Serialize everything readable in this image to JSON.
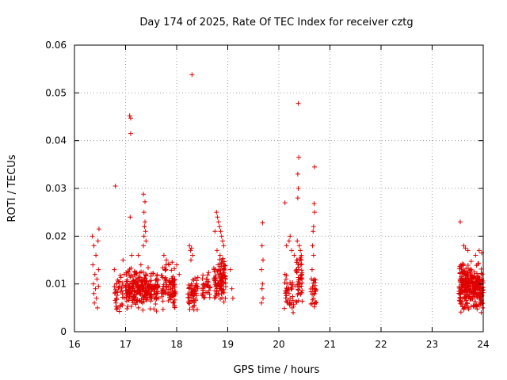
{
  "chart_data": {
    "type": "scatter",
    "title": "Day 174 of 2025, Rate Of TEC Index for receiver cztg",
    "xlabel": "GPS time / hours",
    "ylabel": "ROTI / TECUs",
    "xlim": [
      16,
      24
    ],
    "ylim": [
      0,
      0.06
    ],
    "x_ticks": [
      16,
      17,
      18,
      19,
      20,
      21,
      22,
      23,
      24
    ],
    "x_tick_labels": [
      "16",
      "17",
      "18",
      "19",
      "20",
      "21",
      "22",
      "23",
      "24"
    ],
    "y_ticks": [
      0,
      0.01,
      0.02,
      0.03,
      0.04,
      0.05,
      0.06
    ],
    "y_tick_labels": [
      "0",
      "0.01",
      "0.02",
      "0.03",
      "0.04",
      "0.05",
      "0.06"
    ],
    "grid": true,
    "marker": "+",
    "marker_color": "#e00000",
    "series": [
      {
        "name": "ROTI",
        "points": [
          [
            16.35,
            0.02
          ],
          [
            16.38,
            0.018
          ],
          [
            16.42,
            0.016
          ],
          [
            16.36,
            0.014
          ],
          [
            16.4,
            0.012
          ],
          [
            16.44,
            0.011
          ],
          [
            16.37,
            0.01
          ],
          [
            16.41,
            0.009
          ],
          [
            16.38,
            0.008
          ],
          [
            16.43,
            0.007
          ],
          [
            16.39,
            0.006
          ],
          [
            16.45,
            0.005
          ],
          [
            16.48,
            0.0215
          ],
          [
            16.46,
            0.019
          ],
          [
            16.47,
            0.013
          ],
          [
            16.47,
            0.0095
          ],
          [
            16.8,
            0.0305
          ],
          [
            16.78,
            0.013
          ],
          [
            16.82,
            0.01
          ],
          [
            16.79,
            0.008
          ],
          [
            16.81,
            0.006
          ],
          [
            16.84,
            0.005
          ],
          [
            16.95,
            0.015
          ],
          [
            16.97,
            0.012
          ],
          [
            16.93,
            0.0085
          ],
          [
            17.08,
            0.0452
          ],
          [
            17.1,
            0.0447
          ],
          [
            17.1,
            0.0415
          ],
          [
            17.09,
            0.024
          ],
          [
            17.12,
            0.016
          ],
          [
            17.35,
            0.0288
          ],
          [
            17.38,
            0.0272
          ],
          [
            17.36,
            0.025
          ],
          [
            17.38,
            0.023
          ],
          [
            17.37,
            0.022
          ],
          [
            17.39,
            0.021
          ],
          [
            17.36,
            0.02
          ],
          [
            17.4,
            0.019
          ],
          [
            17.35,
            0.018
          ],
          [
            17.25,
            0.016
          ],
          [
            17.3,
            0.014
          ],
          [
            17.75,
            0.016
          ],
          [
            17.8,
            0.015
          ],
          [
            17.85,
            0.014
          ],
          [
            17.78,
            0.013
          ],
          [
            18.0,
            0.014
          ],
          [
            18.05,
            0.012
          ],
          [
            18.25,
            0.018
          ],
          [
            18.27,
            0.017
          ],
          [
            18.29,
            0.0175
          ],
          [
            18.31,
            0.016
          ],
          [
            18.28,
            0.015
          ],
          [
            18.3,
            0.0538
          ],
          [
            18.75,
            0.021
          ],
          [
            18.78,
            0.025
          ],
          [
            18.8,
            0.024
          ],
          [
            18.82,
            0.023
          ],
          [
            18.84,
            0.022
          ],
          [
            18.86,
            0.021
          ],
          [
            18.88,
            0.02
          ],
          [
            18.9,
            0.019
          ],
          [
            18.92,
            0.018
          ],
          [
            18.79,
            0.017
          ],
          [
            18.85,
            0.016
          ],
          [
            18.89,
            0.015
          ],
          [
            18.81,
            0.014
          ],
          [
            18.93,
            0.013
          ],
          [
            19.05,
            0.013
          ],
          [
            19.08,
            0.009
          ],
          [
            19.1,
            0.007
          ],
          [
            19.68,
            0.0228
          ],
          [
            19.67,
            0.018
          ],
          [
            19.69,
            0.015
          ],
          [
            19.66,
            0.013
          ],
          [
            19.68,
            0.01
          ],
          [
            19.67,
            0.009
          ],
          [
            19.69,
            0.007
          ],
          [
            19.66,
            0.006
          ],
          [
            20.12,
            0.027
          ],
          [
            20.15,
            0.018
          ],
          [
            20.2,
            0.019
          ],
          [
            20.22,
            0.02
          ],
          [
            20.25,
            0.017
          ],
          [
            20.3,
            0.016
          ],
          [
            20.35,
            0.015
          ],
          [
            20.38,
            0.0478
          ],
          [
            20.39,
            0.0365
          ],
          [
            20.37,
            0.033
          ],
          [
            20.38,
            0.03
          ],
          [
            20.37,
            0.028
          ],
          [
            20.36,
            0.019
          ],
          [
            20.4,
            0.018
          ],
          [
            20.42,
            0.017
          ],
          [
            20.44,
            0.016
          ],
          [
            20.41,
            0.015
          ],
          [
            20.43,
            0.014
          ],
          [
            20.39,
            0.013
          ],
          [
            20.45,
            0.012
          ],
          [
            20.12,
            0.012
          ],
          [
            20.14,
            0.011
          ],
          [
            20.16,
            0.01
          ],
          [
            20.18,
            0.009
          ],
          [
            20.2,
            0.008
          ],
          [
            20.22,
            0.007
          ],
          [
            20.24,
            0.006
          ],
          [
            20.26,
            0.005
          ],
          [
            20.28,
            0.004
          ],
          [
            20.7,
            0.0345
          ],
          [
            20.69,
            0.0268
          ],
          [
            20.7,
            0.025
          ],
          [
            20.68,
            0.022
          ],
          [
            20.67,
            0.021
          ],
          [
            20.66,
            0.018
          ],
          [
            20.68,
            0.016
          ],
          [
            20.65,
            0.013
          ],
          [
            20.69,
            0.011
          ],
          [
            20.66,
            0.009
          ],
          [
            20.7,
            0.008
          ],
          [
            20.68,
            0.007
          ],
          [
            20.71,
            0.006
          ],
          [
            23.55,
            0.023
          ],
          [
            23.62,
            0.018
          ],
          [
            23.65,
            0.0175
          ],
          [
            23.7,
            0.017
          ],
          [
            23.85,
            0.016
          ],
          [
            23.92,
            0.017
          ],
          [
            23.97,
            0.0165
          ],
          [
            23.98,
            0.006
          ],
          [
            23.99,
            0.005
          ],
          [
            23.96,
            0.004
          ]
        ]
      }
    ],
    "clusters": [
      {
        "x_range": [
          16.78,
          16.98
        ],
        "y_range": [
          0.004,
          0.012
        ],
        "count": 35
      },
      {
        "x_range": [
          17.0,
          17.45
        ],
        "y_range": [
          0.004,
          0.014
        ],
        "count": 200
      },
      {
        "x_range": [
          17.45,
          17.65
        ],
        "y_range": [
          0.004,
          0.013
        ],
        "count": 70
      },
      {
        "x_range": [
          17.7,
          17.98
        ],
        "y_range": [
          0.004,
          0.015
        ],
        "count": 90
      },
      {
        "x_range": [
          18.22,
          18.42
        ],
        "y_range": [
          0.004,
          0.012
        ],
        "count": 70
      },
      {
        "x_range": [
          18.5,
          18.66
        ],
        "y_range": [
          0.006,
          0.013
        ],
        "count": 35
      },
      {
        "x_range": [
          18.72,
          18.96
        ],
        "y_range": [
          0.006,
          0.016
        ],
        "count": 110
      },
      {
        "x_range": [
          20.1,
          20.3
        ],
        "y_range": [
          0.004,
          0.012
        ],
        "count": 30
      },
      {
        "x_range": [
          20.33,
          20.47
        ],
        "y_range": [
          0.005,
          0.016
        ],
        "count": 45
      },
      {
        "x_range": [
          20.62,
          20.74
        ],
        "y_range": [
          0.005,
          0.012
        ],
        "count": 25
      },
      {
        "x_range": [
          23.52,
          24.0
        ],
        "y_range": [
          0.004,
          0.015
        ],
        "count": 320
      }
    ]
  }
}
